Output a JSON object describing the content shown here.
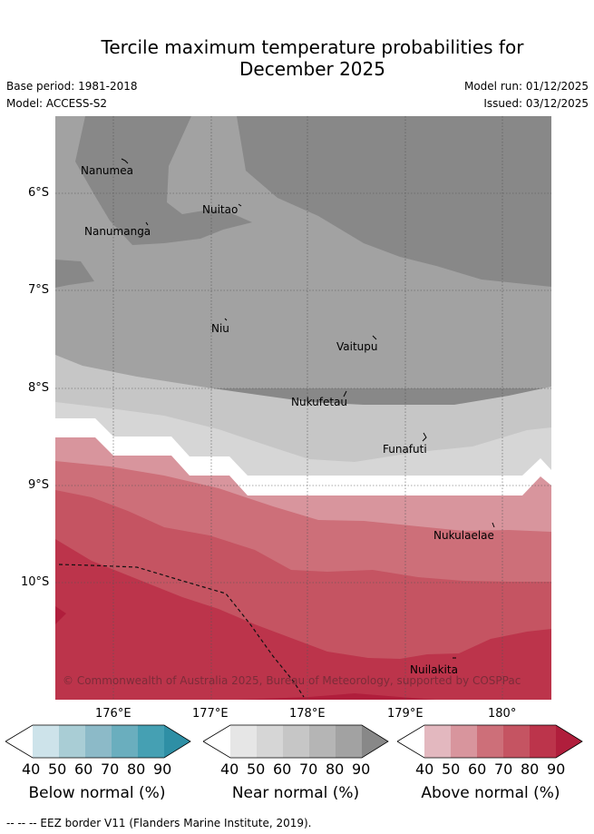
{
  "title_line1": "Tercile maximum temperature probabilities for",
  "title_line2": "December 2025",
  "base_period": "Base period: 1981-2018",
  "model": "Model: ACCESS-S2",
  "model_run": "Model run: 01/12/2025",
  "issued": "Issued: 03/12/2025",
  "y_ticks": [
    "6°S",
    "7°S",
    "8°S",
    "9°S",
    "10°S"
  ],
  "x_ticks": [
    "176°E",
    "177°E",
    "178°E",
    "179°E",
    "180°"
  ],
  "places": [
    {
      "name": "Nanumea"
    },
    {
      "name": "Nuitao"
    },
    {
      "name": "Nanumanga"
    },
    {
      "name": "Niu"
    },
    {
      "name": "Vaitupu"
    },
    {
      "name": "Nukufetau"
    },
    {
      "name": "Funafuti"
    },
    {
      "name": "Nukulaelae"
    },
    {
      "name": "Nuilakita"
    }
  ],
  "copyright": "© Commonwealth of Australia 2025, Bureau of Meteorology, supported by COSPPac",
  "legends": [
    {
      "caption": "Below normal (%)",
      "ticks": [
        "40",
        "50",
        "60",
        "70",
        "80",
        "90"
      ],
      "colors": [
        "#ffffff",
        "#cde3ea",
        "#a9cdd5",
        "#8cbac8",
        "#6aaebe",
        "#45a0b3",
        "#2e8fa5"
      ]
    },
    {
      "caption": "Near normal (%)",
      "ticks": [
        "40",
        "50",
        "60",
        "70",
        "80",
        "90"
      ],
      "colors": [
        "#ffffff",
        "#e6e6e6",
        "#d6d6d6",
        "#c6c6c6",
        "#b5b5b5",
        "#a2a2a2",
        "#888888"
      ]
    },
    {
      "caption": "Above normal (%)",
      "ticks": [
        "40",
        "50",
        "60",
        "70",
        "80",
        "90"
      ],
      "colors": [
        "#ffffff",
        "#e3b8bf",
        "#d8959d",
        "#cd6f79",
        "#c55462",
        "#bc344b",
        "#b01e3c"
      ]
    }
  ],
  "footer": "--  --  -- EEZ border V11 (Flanders Marine Institute, 2019)."
}
